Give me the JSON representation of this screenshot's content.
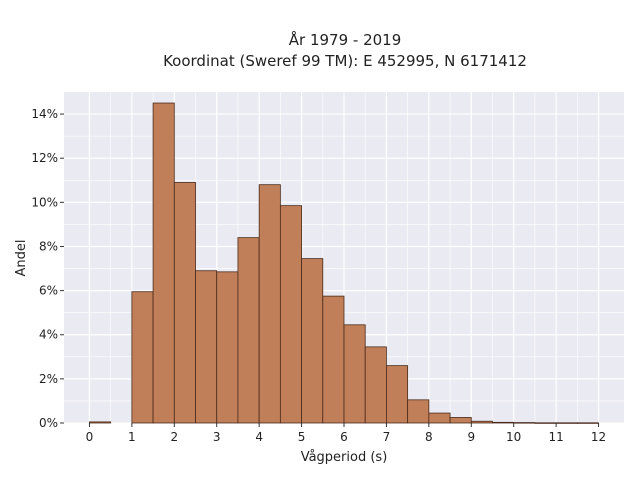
{
  "chart_data": {
    "type": "bar",
    "title": "År 1979 - 2019",
    "subtitle": "Koordinat (Sweref 99 TM): E 452995, N 6171412",
    "xlabel": "Vågperiod (s)",
    "ylabel": "Andel",
    "xlim": [
      -0.6,
      12.6
    ],
    "ylim": [
      0,
      15
    ],
    "x_ticks": [
      0,
      1,
      2,
      3,
      4,
      5,
      6,
      7,
      8,
      9,
      10,
      11,
      12
    ],
    "y_ticks": [
      0,
      2,
      4,
      6,
      8,
      10,
      12,
      14
    ],
    "y_tick_labels": [
      "0%",
      "2%",
      "4%",
      "6%",
      "8%",
      "10%",
      "12%",
      "14%"
    ],
    "bin_width": 0.5,
    "bins": [
      {
        "start": 0.0,
        "value": 0.05
      },
      {
        "start": 0.5,
        "value": 0.0
      },
      {
        "start": 1.0,
        "value": 5.95
      },
      {
        "start": 1.5,
        "value": 14.5
      },
      {
        "start": 2.0,
        "value": 10.9
      },
      {
        "start": 2.5,
        "value": 6.9
      },
      {
        "start": 3.0,
        "value": 6.85
      },
      {
        "start": 3.5,
        "value": 8.4
      },
      {
        "start": 4.0,
        "value": 10.8
      },
      {
        "start": 4.5,
        "value": 9.85
      },
      {
        "start": 5.0,
        "value": 7.45
      },
      {
        "start": 5.5,
        "value": 5.75
      },
      {
        "start": 6.0,
        "value": 4.45
      },
      {
        "start": 6.5,
        "value": 3.45
      },
      {
        "start": 7.0,
        "value": 2.6
      },
      {
        "start": 7.5,
        "value": 1.05
      },
      {
        "start": 8.0,
        "value": 0.45
      },
      {
        "start": 8.5,
        "value": 0.25
      },
      {
        "start": 9.0,
        "value": 0.08
      },
      {
        "start": 9.5,
        "value": 0.03
      },
      {
        "start": 10.0,
        "value": 0.02
      },
      {
        "start": 10.5,
        "value": 0.01
      },
      {
        "start": 11.0,
        "value": 0.01
      },
      {
        "start": 11.5,
        "value": 0.01
      }
    ],
    "grid": true,
    "colors": {
      "bar_fill": "#c17f59",
      "bar_edge": "#4a2a1a",
      "plot_background": "#eaeaf2",
      "grid": "#ffffff"
    }
  }
}
